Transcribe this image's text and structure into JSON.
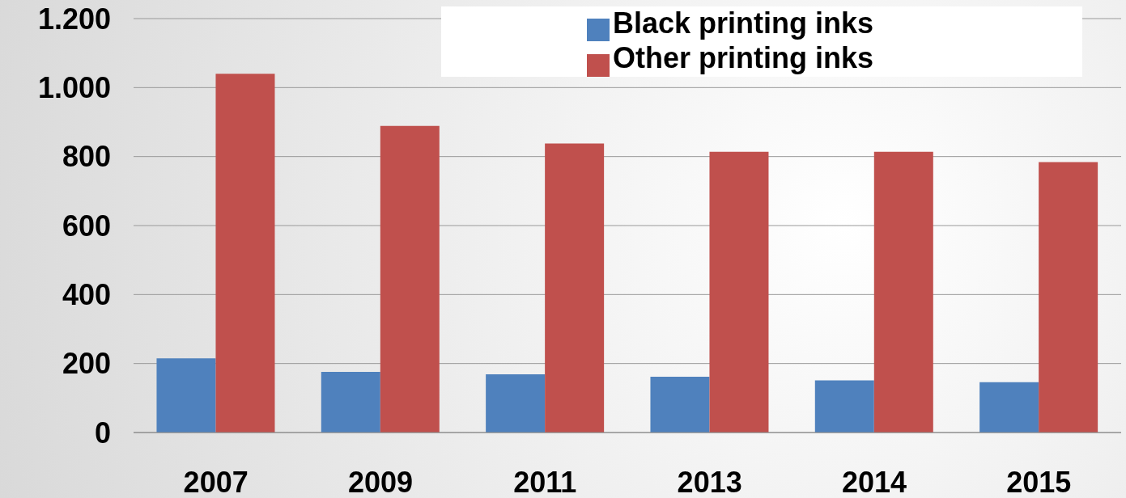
{
  "chart_data": {
    "type": "bar",
    "categories": [
      "2007",
      "2009",
      "2011",
      "2013",
      "2014",
      "2015"
    ],
    "series": [
      {
        "name": "Black printing inks",
        "color": "#4f81bd",
        "values": [
          215,
          176,
          169,
          162,
          151,
          146
        ]
      },
      {
        "name": "Other printing inks",
        "color": "#c0504d",
        "values": [
          1040,
          889,
          838,
          814,
          814,
          784
        ]
      }
    ],
    "ylim": [
      0,
      1200
    ],
    "yticks": [
      0,
      200,
      400,
      600,
      800,
      {
        "value": 1000,
        "label": "1.000"
      },
      {
        "value": 1200,
        "label": "1.200"
      }
    ],
    "grid": "y",
    "legend": "top right"
  }
}
